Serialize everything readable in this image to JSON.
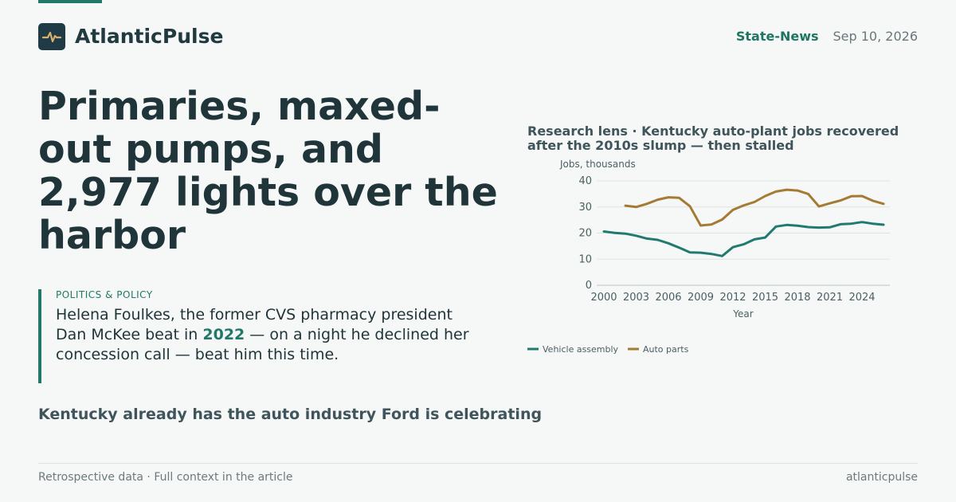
{
  "brand": {
    "name": "AtlanticPulse",
    "logo_icon": "pulse-icon",
    "logo_color": "#203b45",
    "pulse_color": "#d9b16f"
  },
  "header": {
    "section": "State-News",
    "date": "Sep 10, 2026"
  },
  "article": {
    "headline": "Primaries, maxed-out pumps, and 2,977 lights over the harbor",
    "category": "POLITICS & POLICY",
    "deck_before": "Helena Foulkes, the former CVS pharmacy president Dan McKee beat in ",
    "deck_highlight": "2022",
    "deck_after": " — on a night he declined her concession call — beat him this time.",
    "subhead": "Kentucky already has the auto industry Ford is celebrating"
  },
  "footer": {
    "left": "Retrospective data · Full context in the article",
    "right": "atlanticpulse"
  },
  "colors": {
    "accent": "#217867",
    "text": "#20353a",
    "muted": "#69777a",
    "series_vehicle": "#217a6f",
    "series_parts": "#a57a35"
  },
  "chart_data": {
    "type": "line",
    "title": "Research lens · Kentucky auto-plant jobs recovered after the 2010s slump — then stalled",
    "xlabel": "Year",
    "ylabel": "Jobs, thousands",
    "xlim": [
      2000,
      2026
    ],
    "ylim": [
      0,
      40
    ],
    "x_ticks": [
      2000,
      2003,
      2006,
      2009,
      2012,
      2015,
      2018,
      2021,
      2024
    ],
    "y_ticks": [
      0,
      10,
      20,
      30,
      40
    ],
    "grid": "horizontal",
    "legend": "bottom-left",
    "series": [
      {
        "name": "Vehicle assembly",
        "color": "#217a6f",
        "x": [
          2000,
          2001,
          2002,
          2003,
          2004,
          2005,
          2006,
          2007,
          2008,
          2009,
          2010,
          2011,
          2012,
          2013,
          2014,
          2015,
          2016,
          2017,
          2018,
          2019,
          2020,
          2021,
          2022,
          2023,
          2024,
          2025,
          2026
        ],
        "values": [
          20.6,
          20.1,
          19.8,
          19.0,
          17.9,
          17.4,
          16.1,
          14.4,
          12.6,
          12.5,
          12.0,
          11.2,
          14.6,
          15.7,
          17.6,
          18.3,
          22.5,
          23.1,
          22.8,
          22.3,
          22.1,
          22.2,
          23.4,
          23.6,
          24.2,
          23.6,
          23.2
        ]
      },
      {
        "name": "Auto parts",
        "color": "#a57a35",
        "x": [
          2002,
          2003,
          2004,
          2005,
          2006,
          2007,
          2008,
          2009,
          2010,
          2011,
          2012,
          2013,
          2014,
          2015,
          2016,
          2017,
          2018,
          2019,
          2020,
          2021,
          2022,
          2023,
          2024,
          2025,
          2026
        ],
        "values": [
          30.5,
          30.0,
          31.2,
          32.8,
          33.7,
          33.5,
          30.3,
          22.9,
          23.3,
          25.2,
          28.9,
          30.6,
          31.9,
          34.2,
          35.9,
          36.6,
          36.3,
          35.0,
          30.2,
          31.4,
          32.5,
          34.1,
          34.2,
          32.4,
          31.2
        ]
      }
    ]
  }
}
